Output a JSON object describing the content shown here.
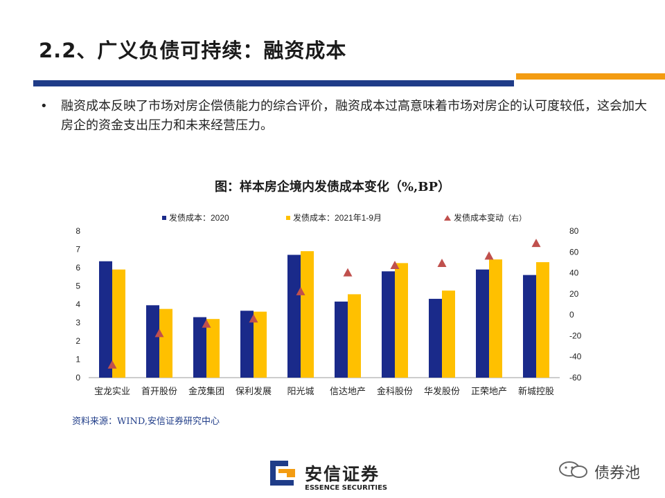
{
  "slide": {
    "title": "2.2、广义负债可持续：融资成本",
    "bullet_mark": "•",
    "bullet_text": "融资成本反映了市场对房企偿债能力的综合评价，融资成本过高意味着市场对房企的认可度较低，这会加大房企的资金支出压力和未来经营压力。"
  },
  "colors": {
    "accent_blue": "#1f3c88",
    "accent_orange": "#f39c12",
    "series_2020": "#1a2a8a",
    "series_2021": "#ffc000",
    "series_change": "#c0504d"
  },
  "chart_data": {
    "type": "bar",
    "title": "图：样本房企境内发债成本变化（%,BP）",
    "categories": [
      "宝龙实业",
      "首开股份",
      "金茂集团",
      "保利发展",
      "阳光城",
      "信达地产",
      "金科股份",
      "华发股份",
      "正荣地产",
      "新城控股"
    ],
    "series": [
      {
        "name": "发债成本：2020",
        "type": "bar",
        "axis": "left",
        "values": [
          6.35,
          3.95,
          3.3,
          3.65,
          6.7,
          4.15,
          5.8,
          4.3,
          5.9,
          5.6
        ]
      },
      {
        "name": "发债成本：2021年1-9月",
        "type": "bar",
        "axis": "left",
        "values": [
          5.9,
          3.75,
          3.2,
          3.6,
          6.9,
          4.55,
          6.25,
          4.75,
          6.45,
          6.3
        ]
      },
      {
        "name": "发债成本变动",
        "axis_note": "（右）",
        "type": "scatter",
        "marker": "triangle",
        "axis": "right",
        "values": [
          -48,
          -18,
          -9,
          -4,
          22,
          40,
          47,
          49,
          56,
          68
        ]
      }
    ],
    "y_left": {
      "min": 0,
      "max": 8,
      "ticks": [
        "0",
        "1",
        "2",
        "3",
        "4",
        "5",
        "6",
        "7",
        "8"
      ]
    },
    "y_right": {
      "min": -60,
      "max": 80,
      "ticks": [
        "-60",
        "-40",
        "-20",
        "0",
        "20",
        "40",
        "60",
        "80"
      ]
    },
    "grid": false,
    "legend_position": "top"
  },
  "source": "资料来源：WIND,安信证券研究中心",
  "logo": {
    "name_cn": "安信证券",
    "name_en": "ESSENCE SECURITIES"
  },
  "watermark": {
    "text": "债券池"
  }
}
